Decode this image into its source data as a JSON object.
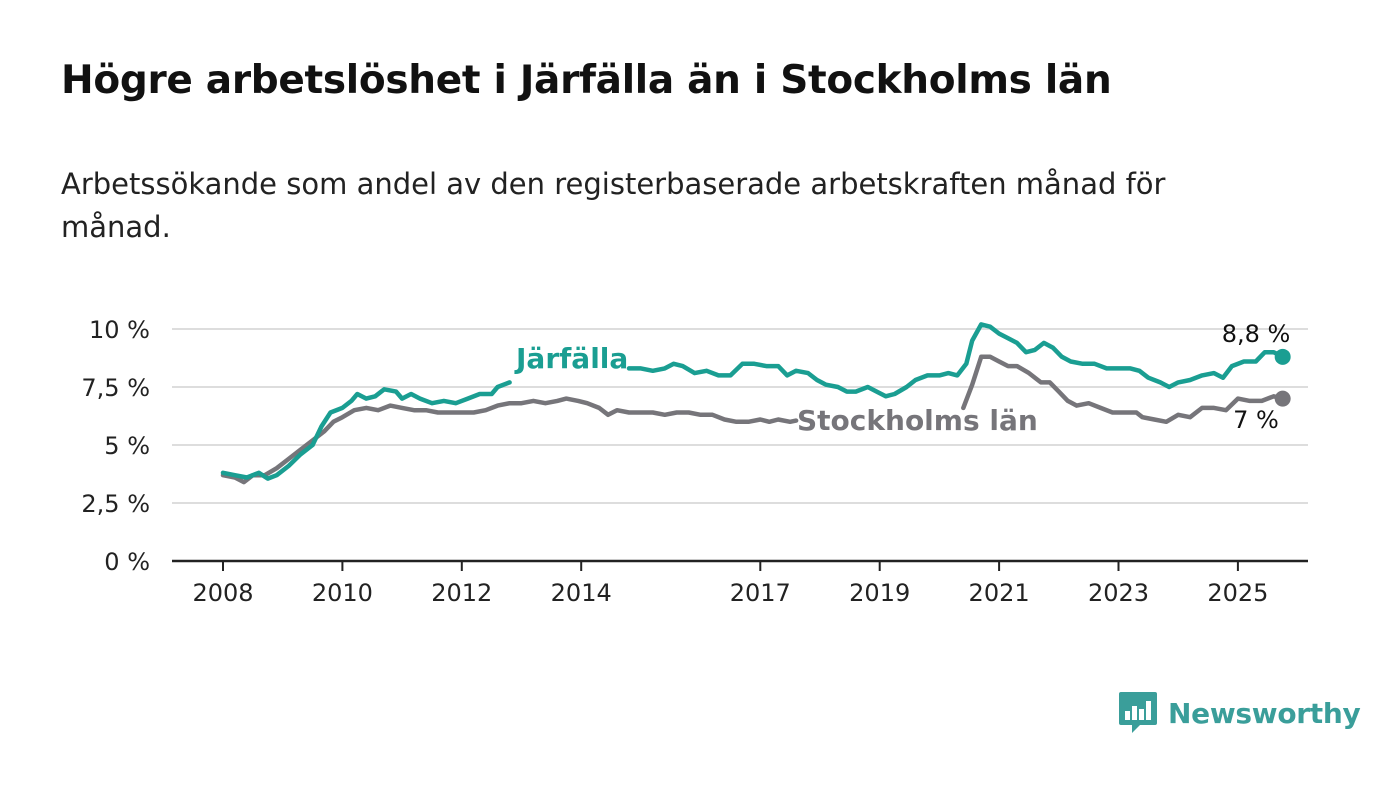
{
  "title": "Högre arbetslöshet i Järfälla än i Stockholms län",
  "subtitle": "Arbetssökande som andel av den registerbaserade arbetskraften månad för månad.",
  "brand": "Newsworthy",
  "colors": {
    "jarfalla": "#1a9e92",
    "stockholm": "#76757a",
    "grid": "#dddddd",
    "axis": "#222222",
    "brand": "#3a9e9a"
  },
  "chart_data": {
    "type": "line",
    "ylim": [
      0,
      10.4
    ],
    "xlim": [
      2007.9,
      2025.6
    ],
    "y_ticks": [
      0,
      2.5,
      5,
      7.5,
      10
    ],
    "y_tick_labels": [
      "0 %",
      "2,5 %",
      "5 %",
      "7,5 %",
      "10 %"
    ],
    "x_ticks": [
      2008,
      2010,
      2012,
      2014,
      2017,
      2019,
      2021,
      2023,
      2025
    ],
    "x_tick_labels": [
      "2008",
      "2010",
      "2012",
      "2014",
      "2017",
      "2019",
      "2021",
      "2023",
      "2025"
    ],
    "grid": true,
    "series": [
      {
        "name": "Järfälla",
        "end_label": "8,8 %",
        "points": [
          [
            2008.0,
            3.8
          ],
          [
            2008.2,
            3.7
          ],
          [
            2008.4,
            3.6
          ],
          [
            2008.6,
            3.8
          ],
          [
            2008.75,
            3.55
          ],
          [
            2008.9,
            3.7
          ],
          [
            2009.1,
            4.1
          ],
          [
            2009.3,
            4.6
          ],
          [
            2009.5,
            5.0
          ],
          [
            2009.65,
            5.8
          ],
          [
            2009.8,
            6.4
          ],
          [
            2010.0,
            6.6
          ],
          [
            2010.15,
            6.9
          ],
          [
            2010.25,
            7.2
          ],
          [
            2010.4,
            7.0
          ],
          [
            2010.55,
            7.1
          ],
          [
            2010.7,
            7.4
          ],
          [
            2010.9,
            7.3
          ],
          [
            2011.0,
            7.0
          ],
          [
            2011.15,
            7.2
          ],
          [
            2011.3,
            7.0
          ],
          [
            2011.5,
            6.8
          ],
          [
            2011.7,
            6.9
          ],
          [
            2011.9,
            6.8
          ],
          [
            2012.1,
            7.0
          ],
          [
            2012.3,
            7.2
          ],
          [
            2012.5,
            7.2
          ],
          [
            2012.6,
            7.5
          ],
          [
            2012.8,
            7.7
          ],
          [
            2014.8,
            8.3
          ],
          [
            2015.0,
            8.3
          ],
          [
            2015.2,
            8.2
          ],
          [
            2015.4,
            8.3
          ],
          [
            2015.55,
            8.5
          ],
          [
            2015.7,
            8.4
          ],
          [
            2015.9,
            8.1
          ],
          [
            2016.1,
            8.2
          ],
          [
            2016.3,
            8.0
          ],
          [
            2016.5,
            8.0
          ],
          [
            2016.7,
            8.5
          ],
          [
            2016.9,
            8.5
          ],
          [
            2017.1,
            8.4
          ],
          [
            2017.3,
            8.4
          ],
          [
            2017.45,
            8.0
          ],
          [
            2017.6,
            8.2
          ],
          [
            2017.8,
            8.1
          ],
          [
            2017.95,
            7.8
          ],
          [
            2018.1,
            7.6
          ],
          [
            2018.3,
            7.5
          ],
          [
            2018.45,
            7.3
          ],
          [
            2018.6,
            7.3
          ],
          [
            2018.8,
            7.5
          ],
          [
            2018.95,
            7.3
          ],
          [
            2019.1,
            7.1
          ],
          [
            2019.25,
            7.2
          ],
          [
            2019.45,
            7.5
          ],
          [
            2019.6,
            7.8
          ],
          [
            2019.8,
            8.0
          ],
          [
            2020.0,
            8.0
          ],
          [
            2020.15,
            8.1
          ],
          [
            2020.3,
            8.0
          ],
          [
            2020.45,
            8.5
          ],
          [
            2020.55,
            9.5
          ],
          [
            2020.7,
            10.2
          ],
          [
            2020.85,
            10.1
          ],
          [
            2021.0,
            9.8
          ],
          [
            2021.15,
            9.6
          ],
          [
            2021.3,
            9.4
          ],
          [
            2021.45,
            9.0
          ],
          [
            2021.6,
            9.1
          ],
          [
            2021.75,
            9.4
          ],
          [
            2021.9,
            9.2
          ],
          [
            2022.05,
            8.8
          ],
          [
            2022.2,
            8.6
          ],
          [
            2022.4,
            8.5
          ],
          [
            2022.6,
            8.5
          ],
          [
            2022.8,
            8.3
          ],
          [
            2023.0,
            8.3
          ],
          [
            2023.2,
            8.3
          ],
          [
            2023.35,
            8.2
          ],
          [
            2023.5,
            7.9
          ],
          [
            2023.7,
            7.7
          ],
          [
            2023.85,
            7.5
          ],
          [
            2024.0,
            7.7
          ],
          [
            2024.2,
            7.8
          ],
          [
            2024.4,
            8.0
          ],
          [
            2024.6,
            8.1
          ],
          [
            2024.75,
            7.9
          ],
          [
            2024.9,
            8.4
          ],
          [
            2025.1,
            8.6
          ],
          [
            2025.3,
            8.6
          ],
          [
            2025.45,
            9.0
          ],
          [
            2025.6,
            9.0
          ],
          [
            2025.75,
            8.8
          ]
        ]
      },
      {
        "name": "Stockholms län",
        "end_label": "7 %",
        "points": [
          [
            2008.0,
            3.7
          ],
          [
            2008.2,
            3.6
          ],
          [
            2008.35,
            3.4
          ],
          [
            2008.5,
            3.7
          ],
          [
            2008.7,
            3.7
          ],
          [
            2008.9,
            4.0
          ],
          [
            2009.1,
            4.4
          ],
          [
            2009.3,
            4.8
          ],
          [
            2009.5,
            5.2
          ],
          [
            2009.7,
            5.6
          ],
          [
            2009.85,
            6.0
          ],
          [
            2010.0,
            6.2
          ],
          [
            2010.2,
            6.5
          ],
          [
            2010.4,
            6.6
          ],
          [
            2010.6,
            6.5
          ],
          [
            2010.8,
            6.7
          ],
          [
            2011.0,
            6.6
          ],
          [
            2011.2,
            6.5
          ],
          [
            2011.4,
            6.5
          ],
          [
            2011.6,
            6.4
          ],
          [
            2011.8,
            6.4
          ],
          [
            2012.0,
            6.4
          ],
          [
            2012.2,
            6.4
          ],
          [
            2012.4,
            6.5
          ],
          [
            2012.6,
            6.7
          ],
          [
            2012.8,
            6.8
          ],
          [
            2013.0,
            6.8
          ],
          [
            2013.2,
            6.9
          ],
          [
            2013.4,
            6.8
          ],
          [
            2013.6,
            6.9
          ],
          [
            2013.75,
            7.0
          ],
          [
            2013.95,
            6.9
          ],
          [
            2014.1,
            6.8
          ],
          [
            2014.3,
            6.6
          ],
          [
            2014.45,
            6.3
          ],
          [
            2014.6,
            6.5
          ],
          [
            2014.8,
            6.4
          ],
          [
            2015.0,
            6.4
          ],
          [
            2015.2,
            6.4
          ],
          [
            2015.4,
            6.3
          ],
          [
            2015.6,
            6.4
          ],
          [
            2015.8,
            6.4
          ],
          [
            2016.0,
            6.3
          ],
          [
            2016.2,
            6.3
          ],
          [
            2016.4,
            6.1
          ],
          [
            2016.6,
            6.0
          ],
          [
            2016.8,
            6.0
          ],
          [
            2017.0,
            6.1
          ],
          [
            2017.15,
            6.0
          ],
          [
            2017.3,
            6.1
          ],
          [
            2017.5,
            6.0
          ],
          [
            2017.6,
            6.05
          ],
          [
            2020.4,
            6.6
          ],
          [
            2020.55,
            7.6
          ],
          [
            2020.7,
            8.8
          ],
          [
            2020.85,
            8.8
          ],
          [
            2021.0,
            8.6
          ],
          [
            2021.15,
            8.4
          ],
          [
            2021.3,
            8.4
          ],
          [
            2021.5,
            8.1
          ],
          [
            2021.7,
            7.7
          ],
          [
            2021.85,
            7.7
          ],
          [
            2022.0,
            7.3
          ],
          [
            2022.15,
            6.9
          ],
          [
            2022.3,
            6.7
          ],
          [
            2022.5,
            6.8
          ],
          [
            2022.7,
            6.6
          ],
          [
            2022.9,
            6.4
          ],
          [
            2023.1,
            6.4
          ],
          [
            2023.3,
            6.4
          ],
          [
            2023.4,
            6.2
          ],
          [
            2023.6,
            6.1
          ],
          [
            2023.8,
            6.0
          ],
          [
            2024.0,
            6.3
          ],
          [
            2024.2,
            6.2
          ],
          [
            2024.4,
            6.6
          ],
          [
            2024.6,
            6.6
          ],
          [
            2024.8,
            6.5
          ],
          [
            2025.0,
            7.0
          ],
          [
            2025.2,
            6.9
          ],
          [
            2025.4,
            6.9
          ],
          [
            2025.6,
            7.1
          ],
          [
            2025.75,
            7.0
          ]
        ]
      }
    ]
  }
}
